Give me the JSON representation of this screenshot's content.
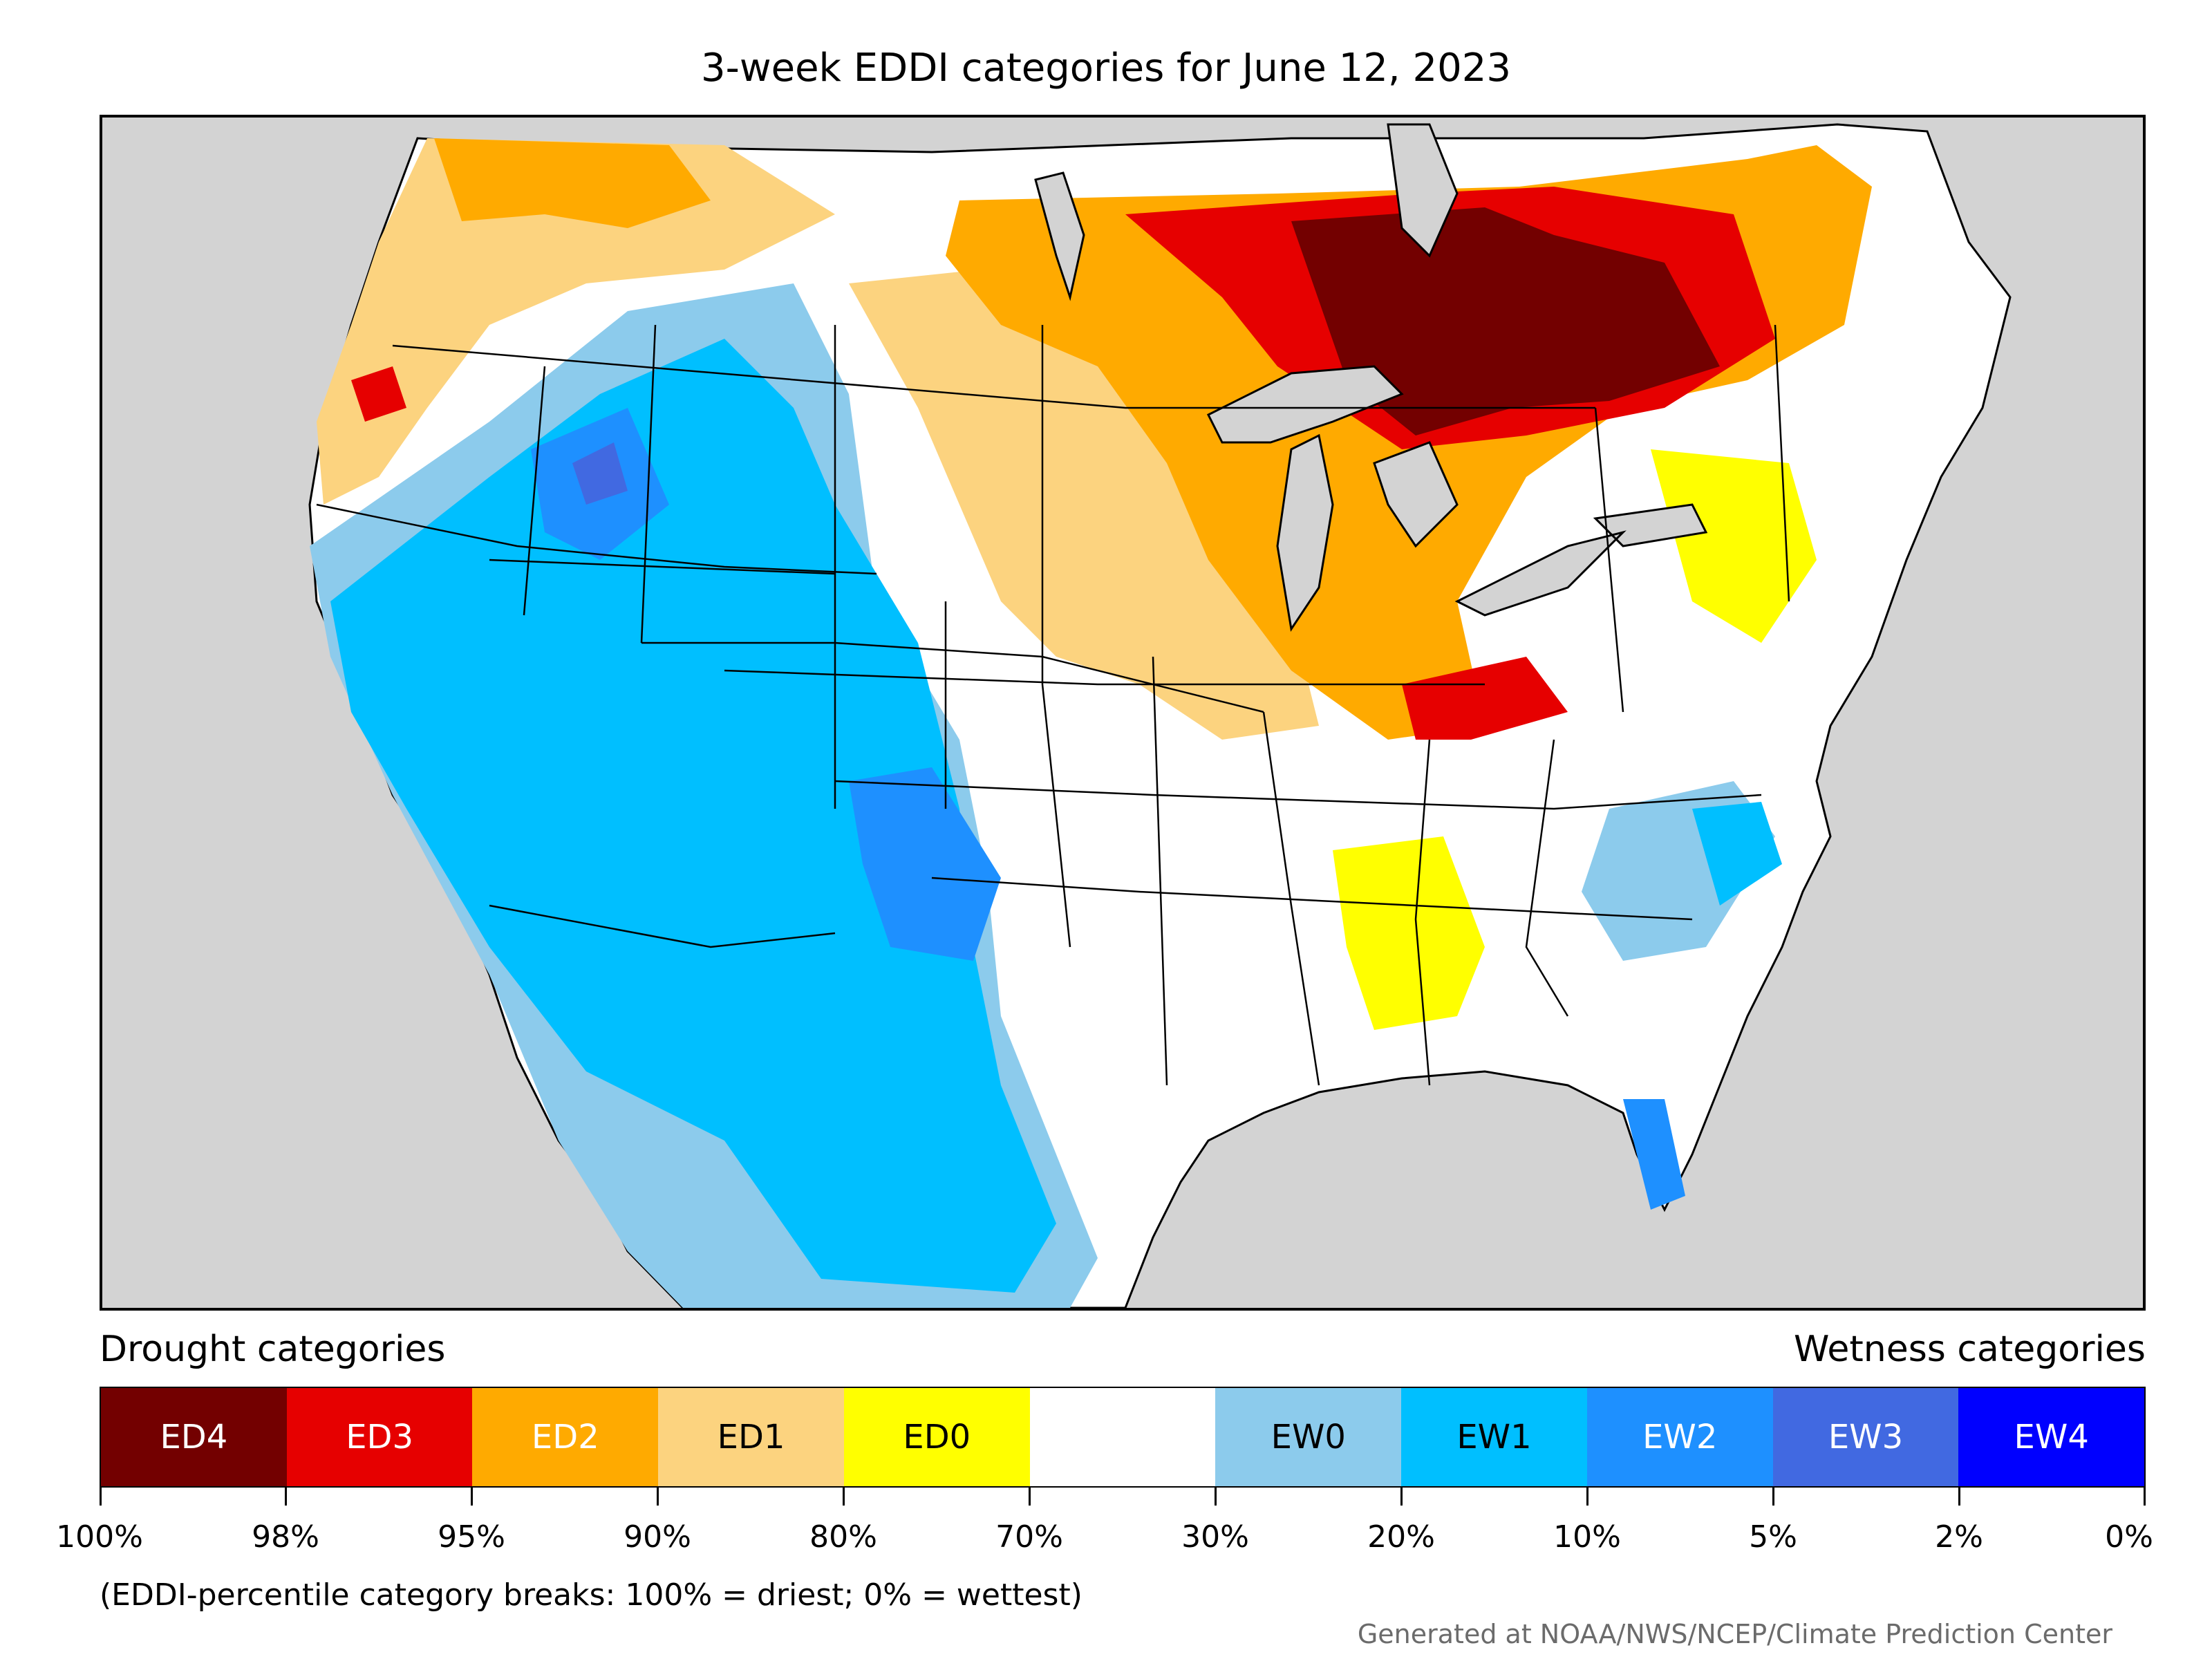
{
  "title": "3-week EDDI categories for June 12, 2023",
  "legend": {
    "drought_heading": "Drought categories",
    "wetness_heading": "Wetness categories",
    "categories": [
      {
        "label": "ED4",
        "color": "#730000",
        "text_color": "#ffffff"
      },
      {
        "label": "ED3",
        "color": "#e60000",
        "text_color": "#ffffff"
      },
      {
        "label": "ED2",
        "color": "#ffaa00",
        "text_color": "#ffffff"
      },
      {
        "label": "ED1",
        "color": "#fcd37f",
        "text_color": "#000000"
      },
      {
        "label": "ED0",
        "color": "#ffff00",
        "text_color": "#000000"
      },
      {
        "label": "",
        "color": "#ffffff",
        "text_color": "#000000"
      },
      {
        "label": "EW0",
        "color": "#8ccbec",
        "text_color": "#000000"
      },
      {
        "label": "EW1",
        "color": "#00bfff",
        "text_color": "#000000"
      },
      {
        "label": "EW2",
        "color": "#1e90ff",
        "text_color": "#ffffff"
      },
      {
        "label": "EW3",
        "color": "#4169e1",
        "text_color": "#ffffff"
      },
      {
        "label": "EW4",
        "color": "#0000ff",
        "text_color": "#ffffff"
      }
    ],
    "breaks": [
      "100%",
      "98%",
      "95%",
      "90%",
      "80%",
      "70%",
      "30%",
      "20%",
      "10%",
      "5%",
      "2%",
      "0%"
    ]
  },
  "note": "(EDDI-percentile category breaks: 100% = driest; 0% = wettest)",
  "credit": "Generated at NOAA/NWS/NCEP/Climate Prediction Center",
  "colors": {
    "ocean": "#d3d3d3",
    "land_none": "#ffffff"
  }
}
